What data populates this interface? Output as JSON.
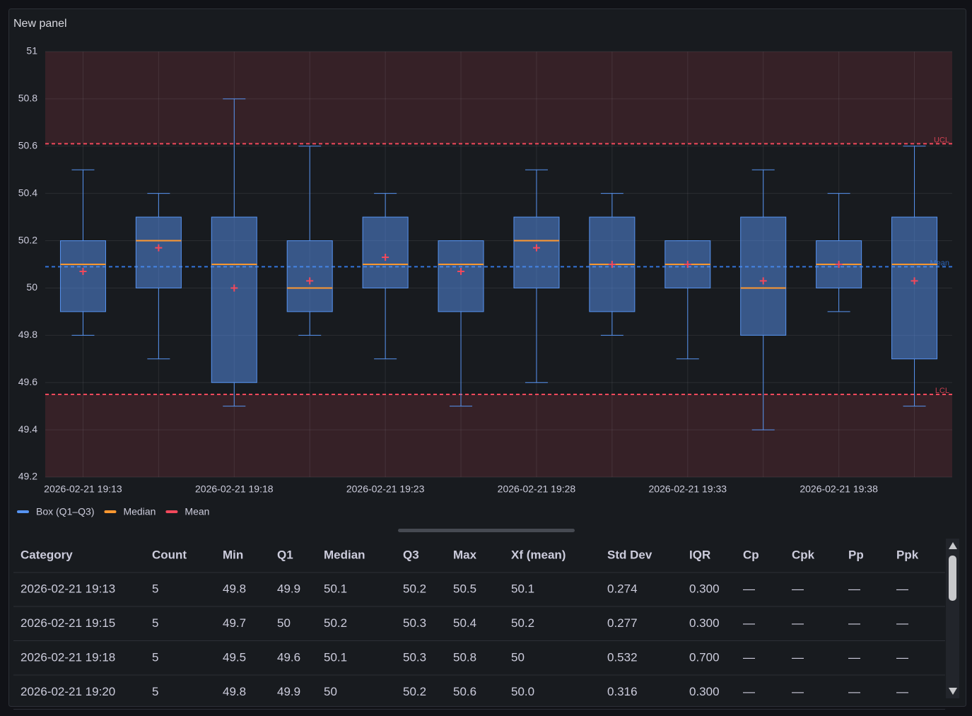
{
  "panel_title": "New panel",
  "chart_data": {
    "type": "boxplot",
    "categories": [
      "2026-02-21 19:13",
      null,
      "2026-02-21 19:18",
      null,
      "2026-02-21 19:23",
      null,
      "2026-02-21 19:28",
      null,
      "2026-02-21 19:33",
      null,
      "2026-02-21 19:38",
      null
    ],
    "boxes": [
      {
        "min": 49.8,
        "q1": 49.9,
        "median": 50.1,
        "q3": 50.2,
        "max": 50.5,
        "mean": 50.07
      },
      {
        "min": 49.7,
        "q1": 50.0,
        "median": 50.2,
        "q3": 50.3,
        "max": 50.4,
        "mean": 50.17
      },
      {
        "min": 49.5,
        "q1": 49.6,
        "median": 50.1,
        "q3": 50.3,
        "max": 50.8,
        "mean": 50.0
      },
      {
        "min": 49.8,
        "q1": 49.9,
        "median": 50.0,
        "q3": 50.2,
        "max": 50.6,
        "mean": 50.03
      },
      {
        "min": 49.7,
        "q1": 50.0,
        "median": 50.1,
        "q3": 50.3,
        "max": 50.4,
        "mean": 50.13
      },
      {
        "min": 49.5,
        "q1": 49.9,
        "median": 50.1,
        "q3": 50.2,
        "max": 50.2,
        "mean": 50.07
      },
      {
        "min": 49.6,
        "q1": 50.0,
        "median": 50.2,
        "q3": 50.3,
        "max": 50.5,
        "mean": 50.17
      },
      {
        "min": 49.8,
        "q1": 49.9,
        "median": 50.1,
        "q3": 50.3,
        "max": 50.4,
        "mean": 50.1
      },
      {
        "min": 49.7,
        "q1": 50.0,
        "median": 50.1,
        "q3": 50.2,
        "max": 50.2,
        "mean": 50.1
      },
      {
        "min": 49.4,
        "q1": 49.8,
        "median": 50.0,
        "q3": 50.3,
        "max": 50.5,
        "mean": 50.03
      },
      {
        "min": 49.9,
        "q1": 50.0,
        "median": 50.1,
        "q3": 50.2,
        "max": 50.4,
        "mean": 50.1
      },
      {
        "min": 49.5,
        "q1": 49.7,
        "median": 50.1,
        "q3": 50.3,
        "max": 50.6,
        "mean": 50.03
      }
    ],
    "ylim": [
      49.2,
      51
    ],
    "yticks": [
      49.2,
      49.4,
      49.6,
      49.8,
      50,
      50.2,
      50.4,
      50.6,
      50.8,
      51
    ],
    "grid": true,
    "reference_lines": [
      {
        "label": "UCL",
        "value": 50.61,
        "color": "#f2495c"
      },
      {
        "label": "Mean",
        "value": 50.09,
        "color": "#3274d9"
      },
      {
        "label": "LCL",
        "value": 49.55,
        "color": "#f2495c"
      }
    ],
    "legend": [
      {
        "name": "Box (Q1–Q3)",
        "color": "#5794f2"
      },
      {
        "name": "Median",
        "color": "#ff9830"
      },
      {
        "name": "Mean",
        "color": "#f2495c"
      }
    ]
  },
  "table": {
    "columns": [
      "Category",
      "Count",
      "Min",
      "Q1",
      "Median",
      "Q3",
      "Max",
      "Xf (mean)",
      "Std Dev",
      "IQR",
      "Cp",
      "Cpk",
      "Pp",
      "Ppk"
    ],
    "rows": [
      [
        "2026-02-21 19:13",
        "5",
        "49.8",
        "49.9",
        "50.1",
        "50.2",
        "50.5",
        "50.1",
        "0.274",
        "0.300",
        "—",
        "—",
        "—",
        "—"
      ],
      [
        "2026-02-21 19:15",
        "5",
        "49.7",
        "50",
        "50.2",
        "50.3",
        "50.4",
        "50.2",
        "0.277",
        "0.300",
        "—",
        "—",
        "—",
        "—"
      ],
      [
        "2026-02-21 19:18",
        "5",
        "49.5",
        "49.6",
        "50.1",
        "50.3",
        "50.8",
        "50",
        "0.532",
        "0.700",
        "—",
        "—",
        "—",
        "—"
      ],
      [
        "2026-02-21 19:20",
        "5",
        "49.8",
        "49.9",
        "50",
        "50.2",
        "50.6",
        "50.0",
        "0.316",
        "0.300",
        "—",
        "—",
        "—",
        "—"
      ]
    ]
  }
}
